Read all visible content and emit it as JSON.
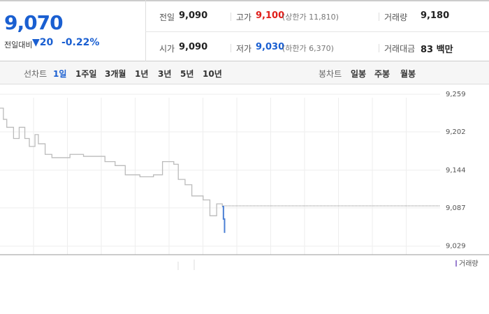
{
  "summary": {
    "price": "9,070",
    "change_label": "전일대비",
    "change": "▼20",
    "change_pct": "-0.22%"
  },
  "stats": [
    [
      {
        "label": "전일",
        "value": "9,090"
      },
      {
        "label": "고가",
        "value": "9,100",
        "extra": "(상한가 11,810)"
      },
      {
        "label": "거래량",
        "value": "9,180"
      }
    ],
    [
      {
        "label": "시가",
        "value": "9,090"
      },
      {
        "label": "저가",
        "value": "9,030",
        "extra": "(하한가 6,370)"
      },
      {
        "label": "거래대금",
        "value": "83 백만"
      }
    ]
  ],
  "toolbar": {
    "line_label": "선차트",
    "line_periods": [
      "1일",
      "1주일",
      "3개월",
      "1년",
      "3년",
      "5년",
      "10년"
    ],
    "candle_label": "봉차트",
    "candle_periods": [
      "일봉",
      "주봉",
      "월봉"
    ]
  },
  "chart": {
    "type": "line",
    "volume_label": "거래량",
    "x": [
      0,
      3,
      6,
      12,
      17,
      22,
      26,
      31,
      34,
      40,
      46,
      56,
      62,
      74,
      93,
      102,
      111,
      124,
      136,
      144,
      154,
      158,
      164,
      170,
      180,
      186,
      192,
      197
    ],
    "xlim": [
      0,
      390
    ],
    "series": [
      {
        "color": "#bbbbbb",
        "values": [
          9238,
          9221,
          9209,
          9192,
          9209,
          9192,
          9180,
          9198,
          9184,
          9168,
          9163,
          9163,
          9168,
          9165,
          9157,
          9151,
          9137,
          9134,
          9137,
          9157,
          9153,
          9130,
          9122,
          9105,
          9099,
          9075,
          9093,
          9089
        ]
      },
      {
        "color": "#4a7fd4",
        "x": [
          197,
          198,
          199
        ],
        "values": [
          9089,
          9070,
          9049
        ]
      }
    ],
    "previous_close": 9090,
    "ylim": [
      9016,
      9275
    ],
    "yticks": [
      {
        "value": 9259,
        "label": "9,259"
      },
      {
        "value": 9202,
        "label": "9,202"
      },
      {
        "value": 9144,
        "label": "9,144"
      },
      {
        "value": 9087,
        "label": "9,087"
      },
      {
        "value": 9029,
        "label": "9,029"
      }
    ]
  }
}
